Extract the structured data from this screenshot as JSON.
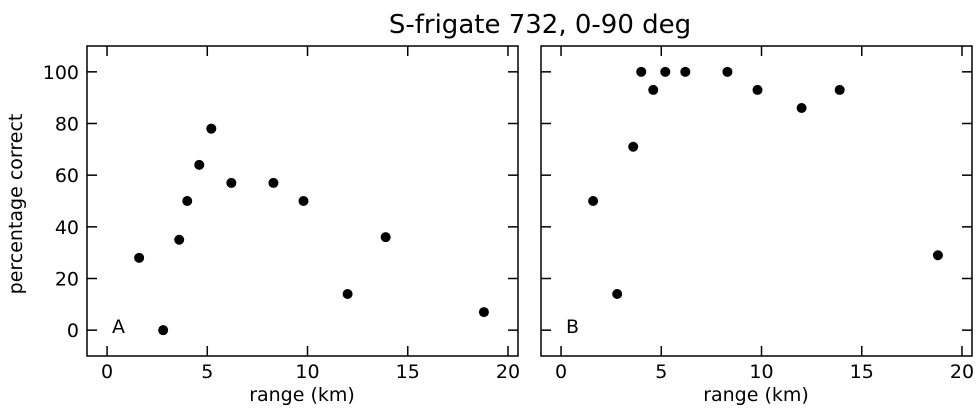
{
  "title": "S-frigate 732, 0-90 deg",
  "chart_data": [
    {
      "type": "scatter",
      "panel_label": "A",
      "xlabel": "range (km)",
      "ylabel": "percentage correct",
      "xlim": [
        -1,
        20.5
      ],
      "ylim": [
        -10,
        110
      ],
      "xticks": [
        0,
        5,
        10,
        15,
        20
      ],
      "yticks": [
        0,
        20,
        40,
        60,
        80,
        100
      ],
      "xtick_labels": [
        "0",
        "5",
        "10",
        "15",
        "20"
      ],
      "ytick_labels": [
        "0",
        "20",
        "40",
        "60",
        "80",
        "100"
      ],
      "grid": false,
      "points": [
        {
          "x": 1.6,
          "y": 28
        },
        {
          "x": 2.8,
          "y": 0
        },
        {
          "x": 3.6,
          "y": 35
        },
        {
          "x": 4.0,
          "y": 50
        },
        {
          "x": 4.6,
          "y": 64
        },
        {
          "x": 5.2,
          "y": 78
        },
        {
          "x": 6.2,
          "y": 57
        },
        {
          "x": 8.3,
          "y": 57
        },
        {
          "x": 9.8,
          "y": 50
        },
        {
          "x": 12.0,
          "y": 14
        },
        {
          "x": 13.9,
          "y": 36
        },
        {
          "x": 18.8,
          "y": 7
        }
      ]
    },
    {
      "type": "scatter",
      "panel_label": "B",
      "xlabel": "range (km)",
      "ylabel": "",
      "xlim": [
        -1,
        20.5
      ],
      "ylim": [
        -10,
        110
      ],
      "xticks": [
        0,
        5,
        10,
        15,
        20
      ],
      "yticks": [
        0,
        20,
        40,
        60,
        80,
        100
      ],
      "xtick_labels": [
        "0",
        "5",
        "10",
        "15",
        "20"
      ],
      "ytick_labels": [],
      "grid": false,
      "points": [
        {
          "x": 1.6,
          "y": 50
        },
        {
          "x": 2.8,
          "y": 14
        },
        {
          "x": 3.6,
          "y": 71
        },
        {
          "x": 4.0,
          "y": 100
        },
        {
          "x": 4.6,
          "y": 93
        },
        {
          "x": 5.2,
          "y": 100
        },
        {
          "x": 6.2,
          "y": 100
        },
        {
          "x": 8.3,
          "y": 100
        },
        {
          "x": 9.8,
          "y": 93
        },
        {
          "x": 12.0,
          "y": 86
        },
        {
          "x": 13.9,
          "y": 93
        },
        {
          "x": 18.8,
          "y": 29
        }
      ]
    }
  ]
}
